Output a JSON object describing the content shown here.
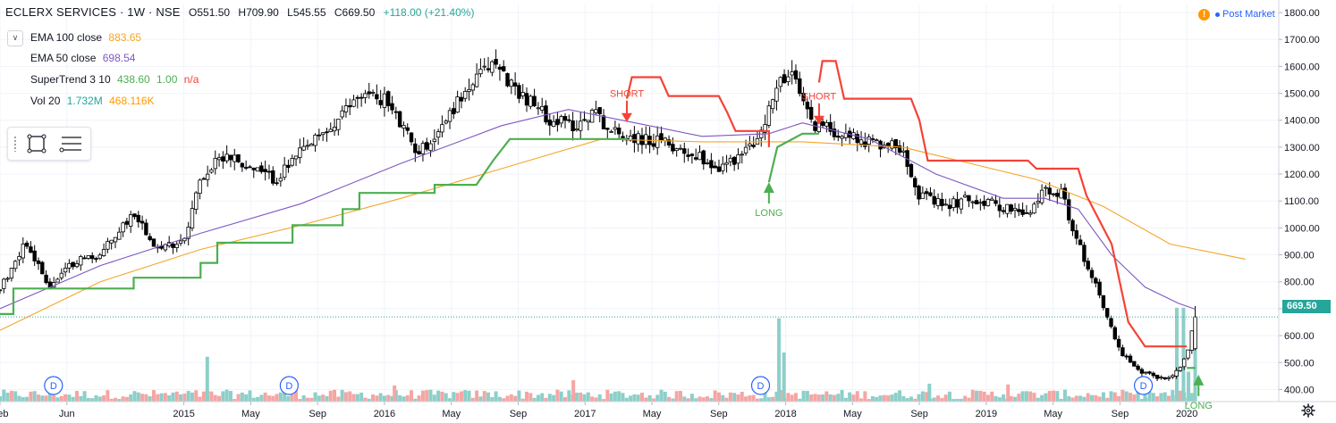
{
  "header": {
    "symbol": "ECLERX SERVICES · 1W · NSE",
    "open": "O551.50",
    "high": "H709.90",
    "low": "L545.55",
    "close": "C669.50",
    "change": "+118.00 (+21.40%)"
  },
  "indicators": [
    {
      "label": "EMA 100 close",
      "values": [
        "883.65"
      ],
      "colors": [
        "#f4a62a"
      ]
    },
    {
      "label": "EMA 50 close",
      "values": [
        "698.54"
      ],
      "colors": [
        "#7e57c2"
      ]
    },
    {
      "label": "SuperTrend 3 10",
      "values": [
        "438.60",
        "1.00",
        "n/a"
      ],
      "colors": [
        "#4caf50",
        "#4caf50",
        "#f44336"
      ]
    },
    {
      "label": "Vol 20",
      "values": [
        "1.732M",
        "468.116K"
      ],
      "colors": [
        "#26a69a",
        "#ff9800"
      ]
    }
  ],
  "post_market": {
    "label": "Post Market"
  },
  "last_price": "669.50",
  "colors": {
    "up": "#26a69a",
    "down": "#ef5350",
    "candle": "#000000",
    "ema100": "#f4a62a",
    "ema50": "#7e57c2",
    "st_up": "#4caf50",
    "st_down": "#f44336",
    "vol_up": "#8dcfc9",
    "vol_down": "#f4a6a4",
    "grid": "#f0f3fa",
    "marker": "#2962ff"
  },
  "chart_data": {
    "type": "line",
    "title": "ECLERX SERVICES · 1W · NSE",
    "xlabel": "",
    "ylabel": "",
    "ylim": [
      355,
      1830
    ],
    "y_ticks": [
      400,
      500,
      600,
      700,
      800,
      900,
      1000,
      1100,
      1200,
      1300,
      1400,
      1500,
      1600,
      1700,
      1800
    ],
    "y_tick_labels": [
      "400.00",
      "500.00",
      "600.00",
      "700.00",
      "800.00",
      "900.00",
      "1000.00",
      "1100.00",
      "1200.00",
      "1300.00",
      "1400.00",
      "1500.00",
      "1600.00",
      "1700.00",
      "1800.00"
    ],
    "x_ticks": [
      {
        "label": "Feb",
        "month": 0
      },
      {
        "label": "Jun",
        "month": 4
      },
      {
        "label": "2015",
        "month": 11
      },
      {
        "label": "May",
        "month": 15
      },
      {
        "label": "Sep",
        "month": 19
      },
      {
        "label": "2016",
        "month": 23
      },
      {
        "label": "May",
        "month": 27
      },
      {
        "label": "Sep",
        "month": 31
      },
      {
        "label": "2017",
        "month": 35
      },
      {
        "label": "May",
        "month": 39
      },
      {
        "label": "Sep",
        "month": 43
      },
      {
        "label": "2018",
        "month": 47
      },
      {
        "label": "May",
        "month": 51
      },
      {
        "label": "Sep",
        "month": 55
      },
      {
        "label": "2019",
        "month": 59
      },
      {
        "label": "May",
        "month": 63
      },
      {
        "label": "Sep",
        "month": 67
      },
      {
        "label": "2020",
        "month": 71
      }
    ],
    "x_range_months": [
      0,
      76.5
    ],
    "price_path": [
      [
        0,
        770
      ],
      [
        1.5,
        950
      ],
      [
        3,
        780
      ],
      [
        4.5,
        880
      ],
      [
        6,
        900
      ],
      [
        8,
        1060
      ],
      [
        9.5,
        920
      ],
      [
        11,
        960
      ],
      [
        12,
        1180
      ],
      [
        13.5,
        1280
      ],
      [
        15,
        1220
      ],
      [
        16.5,
        1180
      ],
      [
        18,
        1280
      ],
      [
        20,
        1380
      ],
      [
        21.5,
        1500
      ],
      [
        23,
        1480
      ],
      [
        24,
        1380
      ],
      [
        25,
        1280
      ],
      [
        26,
        1340
      ],
      [
        27.5,
        1480
      ],
      [
        29.5,
        1620
      ],
      [
        30.5,
        1540
      ],
      [
        31.5,
        1480
      ],
      [
        33,
        1400
      ],
      [
        34.5,
        1380
      ],
      [
        35.5,
        1440
      ],
      [
        36.5,
        1360
      ],
      [
        38.5,
        1330
      ],
      [
        40,
        1310
      ],
      [
        42,
        1260
      ],
      [
        43,
        1220
      ],
      [
        44.5,
        1280
      ],
      [
        45.5,
        1340
      ],
      [
        46.5,
        1540
      ],
      [
        47.5,
        1560
      ],
      [
        48.5,
        1390
      ],
      [
        50,
        1360
      ],
      [
        52,
        1320
      ],
      [
        54,
        1300
      ],
      [
        55,
        1120
      ],
      [
        56.5,
        1080
      ],
      [
        58,
        1110
      ],
      [
        60,
        1080
      ],
      [
        61.5,
        1040
      ],
      [
        62.5,
        1150
      ],
      [
        63.5,
        1130
      ],
      [
        64.5,
        940
      ],
      [
        65.5,
        800
      ],
      [
        67,
        540
      ],
      [
        68,
        470
      ],
      [
        69,
        450
      ],
      [
        70,
        440
      ],
      [
        71,
        520
      ],
      [
        71.5,
        669.5
      ]
    ],
    "series": [
      {
        "name": "EMA 100 close",
        "points": [
          [
            0,
            620
          ],
          [
            6,
            800
          ],
          [
            12,
            920
          ],
          [
            18,
            1010
          ],
          [
            24,
            1110
          ],
          [
            30,
            1220
          ],
          [
            36,
            1330
          ],
          [
            42,
            1320
          ],
          [
            48,
            1320
          ],
          [
            54,
            1300
          ],
          [
            58,
            1240
          ],
          [
            62,
            1180
          ],
          [
            66,
            1080
          ],
          [
            70,
            940
          ],
          [
            74.5,
            884
          ]
        ]
      },
      {
        "name": "EMA 50 close",
        "points": [
          [
            0,
            700
          ],
          [
            6,
            860
          ],
          [
            12,
            980
          ],
          [
            18,
            1090
          ],
          [
            24,
            1240
          ],
          [
            30,
            1380
          ],
          [
            34,
            1440
          ],
          [
            38,
            1390
          ],
          [
            42,
            1340
          ],
          [
            46,
            1350
          ],
          [
            48,
            1390
          ],
          [
            52,
            1330
          ],
          [
            56,
            1200
          ],
          [
            60,
            1110
          ],
          [
            62.5,
            1110
          ],
          [
            64.5,
            1070
          ],
          [
            66.5,
            900
          ],
          [
            68.5,
            780
          ],
          [
            70.5,
            720
          ],
          [
            71.5,
            698.5
          ]
        ]
      },
      {
        "name": "SuperTrend 3 10 (long)",
        "points": [
          [
            0,
            680
          ],
          [
            0.8,
            680
          ],
          [
            0.8,
            775
          ],
          [
            8,
            775
          ],
          [
            8,
            815
          ],
          [
            12,
            815
          ],
          [
            12,
            870
          ],
          [
            13,
            870
          ],
          [
            13,
            945
          ],
          [
            17.5,
            945
          ],
          [
            17.5,
            1010
          ],
          [
            20.5,
            1010
          ],
          [
            20.5,
            1070
          ],
          [
            21.5,
            1070
          ],
          [
            21.5,
            1130
          ],
          [
            26,
            1130
          ],
          [
            26,
            1160
          ],
          [
            28.5,
            1160
          ],
          [
            29.5,
            1250
          ],
          [
            30.5,
            1330
          ],
          [
            37.5,
            1330
          ]
        ]
      },
      {
        "name": "SuperTrend 3 10 (short)",
        "points": [
          [
            37.5,
            1480
          ],
          [
            37.8,
            1560
          ],
          [
            39.5,
            1560
          ],
          [
            40,
            1490
          ],
          [
            43,
            1490
          ],
          [
            43.5,
            1430
          ],
          [
            44,
            1360
          ],
          [
            46,
            1360
          ],
          [
            46,
            1300
          ]
        ]
      },
      {
        "name": "SuperTrend 3 10 (long)",
        "points": [
          [
            46,
            1170
          ],
          [
            46.5,
            1300
          ],
          [
            48,
            1350
          ],
          [
            49,
            1350
          ]
        ]
      },
      {
        "name": "SuperTrend 3 10 (short)",
        "points": [
          [
            49,
            1540
          ],
          [
            49.2,
            1620
          ],
          [
            50,
            1620
          ],
          [
            50.5,
            1480
          ],
          [
            54.5,
            1480
          ],
          [
            55,
            1400
          ],
          [
            55.5,
            1250
          ],
          [
            61.5,
            1250
          ],
          [
            62,
            1220
          ],
          [
            64.5,
            1220
          ],
          [
            65,
            1120
          ],
          [
            66.5,
            940
          ],
          [
            67.5,
            650
          ],
          [
            68.5,
            560
          ],
          [
            71,
            560
          ]
        ]
      },
      {
        "name": "SuperTrend 3 10 (long)",
        "points": [
          [
            71,
            480
          ],
          [
            71.5,
            480
          ]
        ]
      }
    ],
    "volume": {
      "max": 2300000,
      "spikes": [
        {
          "month": 12.4,
          "value": 1050000,
          "dir": "up"
        },
        {
          "month": 23.6,
          "value": 380000,
          "dir": "down"
        },
        {
          "month": 34.3,
          "value": 500000,
          "dir": "down"
        },
        {
          "month": 46.6,
          "value": 1950000,
          "dir": "up"
        },
        {
          "month": 46.9,
          "value": 1150000,
          "dir": "up"
        },
        {
          "month": 55.6,
          "value": 420000,
          "dir": "up"
        },
        {
          "month": 60.3,
          "value": 400000,
          "dir": "down"
        },
        {
          "month": 68.5,
          "value": 300000,
          "dir": "up"
        },
        {
          "month": 70.4,
          "value": 2200000,
          "dir": "up"
        },
        {
          "month": 70.8,
          "value": 2200000,
          "dir": "up"
        },
        {
          "month": 71.1,
          "value": 700000,
          "dir": "up"
        },
        {
          "month": 71.5,
          "value": 1732000,
          "dir": "up"
        }
      ]
    },
    "dividend_markers": [
      {
        "label": "D",
        "month": 3.2
      },
      {
        "label": "D",
        "month": 17.3
      },
      {
        "label": "D",
        "month": 45.5
      },
      {
        "label": "D",
        "month": 68.4
      }
    ],
    "signals": [
      {
        "label": "SHORT",
        "type": "short",
        "month": 37.5,
        "price": 1400
      },
      {
        "label": "LONG",
        "type": "long",
        "month": 46.0,
        "price": 1170
      },
      {
        "label": "SHORT",
        "type": "short",
        "month": 49.0,
        "price": 1390
      },
      {
        "label": "LONG",
        "type": "long",
        "month": 71.7,
        "price": 455
      }
    ]
  }
}
